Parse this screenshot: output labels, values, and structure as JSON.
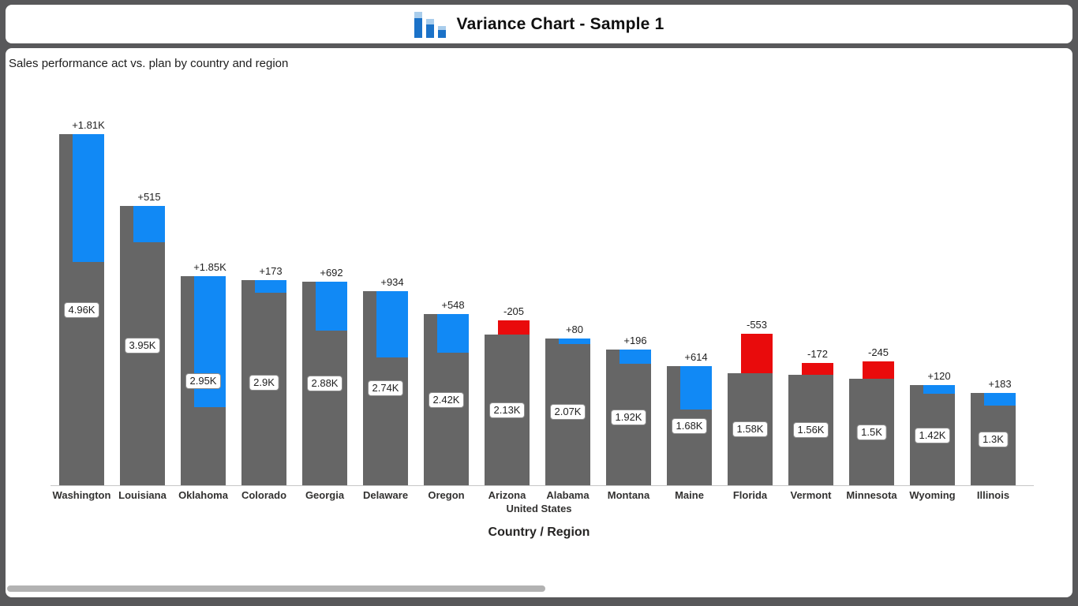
{
  "header": {
    "title": "Variance Chart - Sample 1",
    "icon": "bar-chart-icon"
  },
  "subtitle": "Sales performance act vs. plan by country and region",
  "chart_data": {
    "type": "bar",
    "variant": "variance",
    "title": "Variance Chart - Sample 1",
    "subtitle": "Sales performance act vs. plan by country and region",
    "xlabel": "Country / Region",
    "group_label": "United States",
    "legend": "none",
    "grid": false,
    "ylim": [
      0,
      5200
    ],
    "categories": [
      "Washington",
      "Louisiana",
      "Oklahoma",
      "Colorado",
      "Georgia",
      "Delaware",
      "Oregon",
      "Arizona",
      "Alabama",
      "Montana",
      "Maine",
      "Florida",
      "Vermont",
      "Minnesota",
      "Wyoming",
      "Illinois"
    ],
    "series": [
      {
        "name": "actual",
        "values": [
          4960,
          3950,
          2950,
          2900,
          2880,
          2740,
          2420,
          2130,
          2070,
          1920,
          1680,
          1580,
          1560,
          1500,
          1420,
          1300
        ]
      },
      {
        "name": "variance",
        "values": [
          1810,
          515,
          1850,
          173,
          692,
          934,
          548,
          -205,
          80,
          196,
          614,
          -553,
          -172,
          -245,
          120,
          183
        ]
      }
    ],
    "value_labels": [
      "4.96K",
      "3.95K",
      "2.95K",
      "2.9K",
      "2.88K",
      "2.74K",
      "2.42K",
      "2.13K",
      "2.07K",
      "1.92K",
      "1.68K",
      "1.58K",
      "1.56K",
      "1.5K",
      "1.42K",
      "1.3K"
    ],
    "variance_labels": [
      "+1.81K",
      "+515",
      "+1.85K",
      "+173",
      "+692",
      "+934",
      "+548",
      "-205",
      "+80",
      "+196",
      "+614",
      "-553",
      "-172",
      "-245",
      "+120",
      "+183"
    ],
    "colors": {
      "actual": "#666666",
      "positive": "#1189f5",
      "negative": "#e90b0c"
    }
  }
}
